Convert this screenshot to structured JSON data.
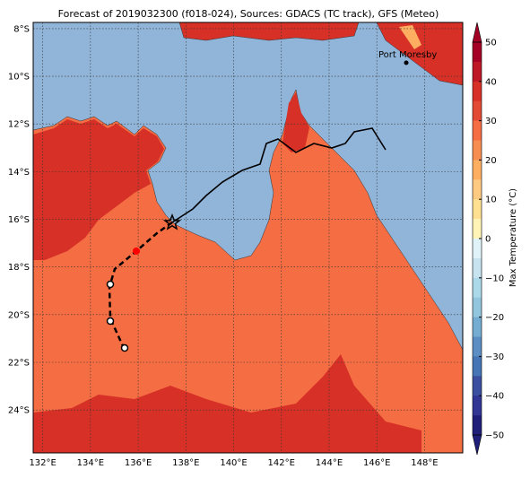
{
  "title": "Forecast of 2019032300 (f018-024), Sources: GDACS (TC track), GFS (Meteo)",
  "map": {
    "extent": {
      "lon": [
        131.6,
        149.6
      ],
      "lat": [
        -7.74,
        -25.8
      ]
    },
    "lon_ticks": [
      {
        "value": 132,
        "label": "132°E"
      },
      {
        "value": 134,
        "label": "134°E"
      },
      {
        "value": 136,
        "label": "136°E"
      },
      {
        "value": 138,
        "label": "138°E"
      },
      {
        "value": 140,
        "label": "140°E"
      },
      {
        "value": 142,
        "label": "142°E"
      },
      {
        "value": 144,
        "label": "144°E"
      },
      {
        "value": 146,
        "label": "146°E"
      },
      {
        "value": 148,
        "label": "148°E"
      }
    ],
    "lat_ticks": [
      {
        "value": -8,
        "label": "8°S"
      },
      {
        "value": -10,
        "label": "10°S"
      },
      {
        "value": -12,
        "label": "12°S"
      },
      {
        "value": -14,
        "label": "14°S"
      },
      {
        "value": -16,
        "label": "16°S"
      },
      {
        "value": -18,
        "label": "18°S"
      },
      {
        "value": -20,
        "label": "20°S"
      },
      {
        "value": -22,
        "label": "22°S"
      },
      {
        "value": -24,
        "label": "24°S"
      }
    ],
    "place_label": "Port Moresby"
  },
  "colorbar": {
    "label": "Max Temperature (°C)",
    "range": [
      -50,
      50
    ],
    "ticks": [
      {
        "value": 50,
        "label": "50"
      },
      {
        "value": 40,
        "label": "40"
      },
      {
        "value": 30,
        "label": "30"
      },
      {
        "value": 20,
        "label": "20"
      },
      {
        "value": 10,
        "label": "10"
      },
      {
        "value": 0,
        "label": "0"
      },
      {
        "value": -10,
        "label": "−10"
      },
      {
        "value": -20,
        "label": "−20"
      },
      {
        "value": -30,
        "label": "−30"
      },
      {
        "value": -40,
        "label": "−40"
      },
      {
        "value": -50,
        "label": "−50"
      }
    ],
    "colors": [
      "#a50026",
      "#be1827",
      "#d73027",
      "#e34a33",
      "#f46d43",
      "#f88d52",
      "#fdae61",
      "#fec980",
      "#fee090",
      "#fff4b6",
      "#e0f3f8",
      "#c6e3ef",
      "#abd9e9",
      "#92c5de",
      "#74add1",
      "#5b8fc4",
      "#4575b4",
      "#3b4fa0",
      "#313695",
      "#1f1f7a"
    ]
  }
}
